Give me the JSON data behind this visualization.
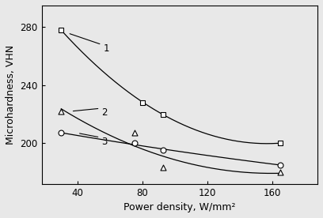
{
  "series1": {
    "x": [
      30,
      80,
      93,
      165
    ],
    "y": [
      278,
      228,
      220,
      200
    ],
    "marker": "s",
    "label": "1"
  },
  "series2": {
    "x": [
      30,
      75,
      93,
      165
    ],
    "y": [
      207,
      200,
      195,
      185
    ],
    "marker": "o",
    "label": "2"
  },
  "series3": {
    "x": [
      30,
      75,
      93,
      165
    ],
    "y": [
      222,
      207,
      183,
      180
    ],
    "marker": "^",
    "label": "3"
  },
  "xlabel": "Power density, W/mm²",
  "ylabel": "Microhardness, VHN",
  "xlim": [
    18,
    188
  ],
  "ylim": [
    172,
    295
  ],
  "yticks": [
    200,
    240,
    280
  ],
  "xticks": [
    40,
    80,
    120,
    160
  ],
  "background_color": "#e8e8e8"
}
